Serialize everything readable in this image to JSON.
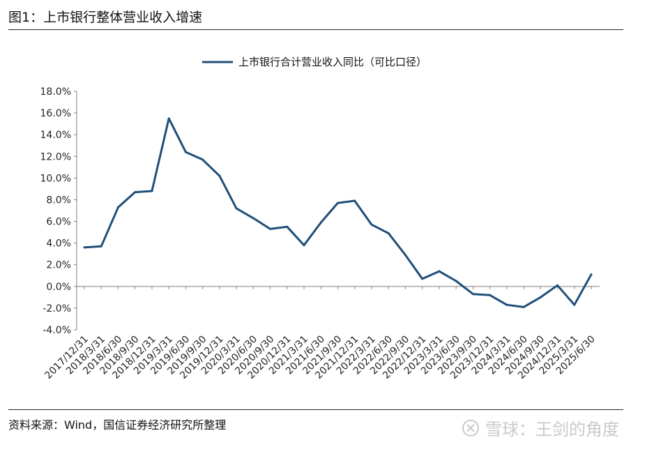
{
  "header": {
    "title": "图1：上市银行整体营业收入增速"
  },
  "footer": {
    "source": "资料来源：Wind，国信证券经济研究所整理",
    "watermark": "雪球：王剑的角度"
  },
  "colors": {
    "line": "#1f4e79",
    "axis": "#7f7f7f"
  },
  "chart_data": {
    "type": "line",
    "title": "",
    "xlabel": "",
    "ylabel": "",
    "legend_position": "top-center",
    "grid": false,
    "ylim": [
      -4,
      18
    ],
    "y_ticks": [
      "18.0%",
      "16.0%",
      "14.0%",
      "12.0%",
      "10.0%",
      "8.0%",
      "6.0%",
      "4.0%",
      "2.0%",
      "0.0%",
      "-2.0%",
      "-4.0%"
    ],
    "y_tick_values": [
      18,
      16,
      14,
      12,
      10,
      8,
      6,
      4,
      2,
      0,
      -2,
      -4
    ],
    "categories": [
      "2017/12/31",
      "2018/3/31",
      "2018/6/30",
      "2018/9/30",
      "2018/12/31",
      "2019/3/31",
      "2019/6/30",
      "2019/9/30",
      "2019/12/31",
      "2020/3/31",
      "2020/6/30",
      "2020/9/30",
      "2020/12/31",
      "2021/3/31",
      "2021/6/30",
      "2021/9/30",
      "2021/12/31",
      "2022/3/31",
      "2022/6/30",
      "2022/9/30",
      "2022/12/31",
      "2023/3/31",
      "2023/6/30",
      "2023/9/30",
      "2023/12/31",
      "2024/3/31",
      "2024/6/30",
      "2024/9/30",
      "2024/12/31",
      "2025/3/31",
      "2025/6/30"
    ],
    "series": [
      {
        "name": "上市银行合计营业收入同比（可比口径）",
        "values": [
          3.6,
          3.7,
          7.3,
          8.7,
          8.8,
          15.5,
          12.4,
          11.7,
          10.2,
          7.2,
          6.3,
          5.3,
          5.5,
          3.8,
          5.9,
          7.7,
          7.9,
          5.7,
          4.9,
          2.9,
          0.7,
          1.4,
          0.5,
          -0.7,
          -0.8,
          -1.7,
          -1.9,
          -1.0,
          0.1,
          -1.7,
          1.1
        ]
      }
    ]
  }
}
